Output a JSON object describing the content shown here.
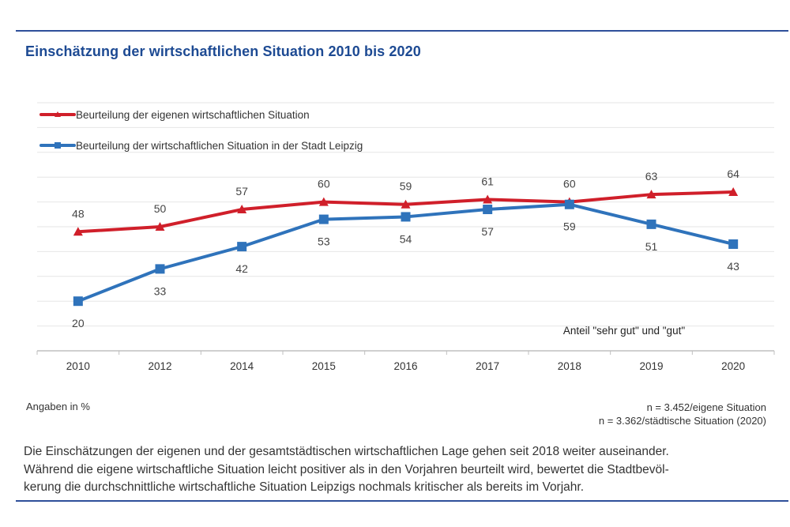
{
  "title": "Einschätzung der wirtschaftlichen Situation 2010 bis 2020",
  "chart_data": {
    "type": "line",
    "title": "Einschätzung der wirtschaftlichen Situation 2010 bis 2020",
    "xlabel": "",
    "ylabel": "",
    "categories": [
      "2010",
      "2012",
      "2014",
      "2015",
      "2016",
      "2017",
      "2018",
      "2019",
      "2020"
    ],
    "ylim": [
      0,
      100
    ],
    "grid": true,
    "legend_position": "top-left",
    "annotation": "Anteil \"sehr gut\" und \"gut\"",
    "series": [
      {
        "name": "Beurteilung der eigenen wirtschaftlichen Situation",
        "color": "#d01f2a",
        "marker": "triangle",
        "label_position": "above",
        "values": [
          48,
          50,
          57,
          60,
          59,
          61,
          60,
          63,
          64
        ]
      },
      {
        "name": "Beurteilung der wirtschaftlichen Situation in der Stadt Leipzig",
        "color": "#2f73bb",
        "marker": "square",
        "label_position": "below",
        "values": [
          20,
          33,
          42,
          53,
          54,
          57,
          59,
          51,
          43
        ]
      }
    ]
  },
  "notes": {
    "unit": "Angaben in %",
    "sample_1": "n = 3.452/eigene Situation",
    "sample_2": "n = 3.362/städtische Situation (2020)"
  },
  "description": {
    "line_1": "Die Einschätzungen der eigenen und der gesamtstädtischen wirtschaftlichen Lage gehen seit 2018 weiter auseinander.",
    "line_2": "Während die eigene wirtschaftliche Situation leicht positiver als in den Vorjahren beurteilt wird, bewertet die Stadtbevöl-",
    "line_3": "kerung die durchschnittliche wirtschaftliche Situation Leipzigs nochmals kritischer als bereits im Vorjahr."
  }
}
